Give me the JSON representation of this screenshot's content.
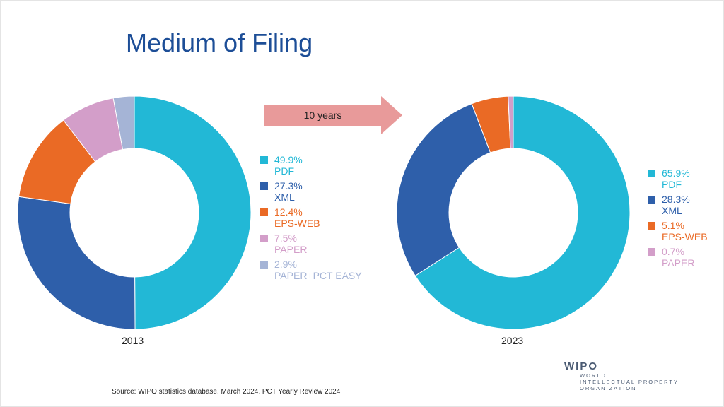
{
  "title": "Medium of Filing",
  "arrow_label": "10 years",
  "source": "Source:  WIPO statistics database. March 2024, PCT Yearly Review 2024",
  "logo": {
    "brand": "WIPO",
    "line1": "WORLD",
    "line2": "INTELLECTUAL PROPERTY",
    "line3": "ORGANIZATION"
  },
  "colors": {
    "PDF": "#22b8d6",
    "XML": "#2e5faa",
    "EPS-WEB": "#ea6a25",
    "PAPER": "#d39ec9",
    "PAPER+PCT EASY": "#a5b4d6",
    "arrow": "#e89a9a"
  },
  "chart_data": [
    {
      "type": "pie",
      "donut": true,
      "xlabel": "2013",
      "slices": [
        {
          "label": "PDF",
          "value": 49.9,
          "text": "49.9%"
        },
        {
          "label": "XML",
          "value": 27.3,
          "text": "27.3%"
        },
        {
          "label": "EPS-WEB",
          "value": 12.4,
          "text": "12.4%"
        },
        {
          "label": "PAPER",
          "value": 7.5,
          "text": "7.5%"
        },
        {
          "label": "PAPER+PCT EASY",
          "value": 2.9,
          "text": "2.9%"
        }
      ]
    },
    {
      "type": "pie",
      "donut": true,
      "xlabel": "2023",
      "slices": [
        {
          "label": "PDF",
          "value": 65.9,
          "text": "65.9%"
        },
        {
          "label": "XML",
          "value": 28.3,
          "text": "28.3%"
        },
        {
          "label": "EPS-WEB",
          "value": 5.1,
          "text": "5.1%"
        },
        {
          "label": "PAPER",
          "value": 0.7,
          "text": "0.7%"
        }
      ]
    }
  ]
}
